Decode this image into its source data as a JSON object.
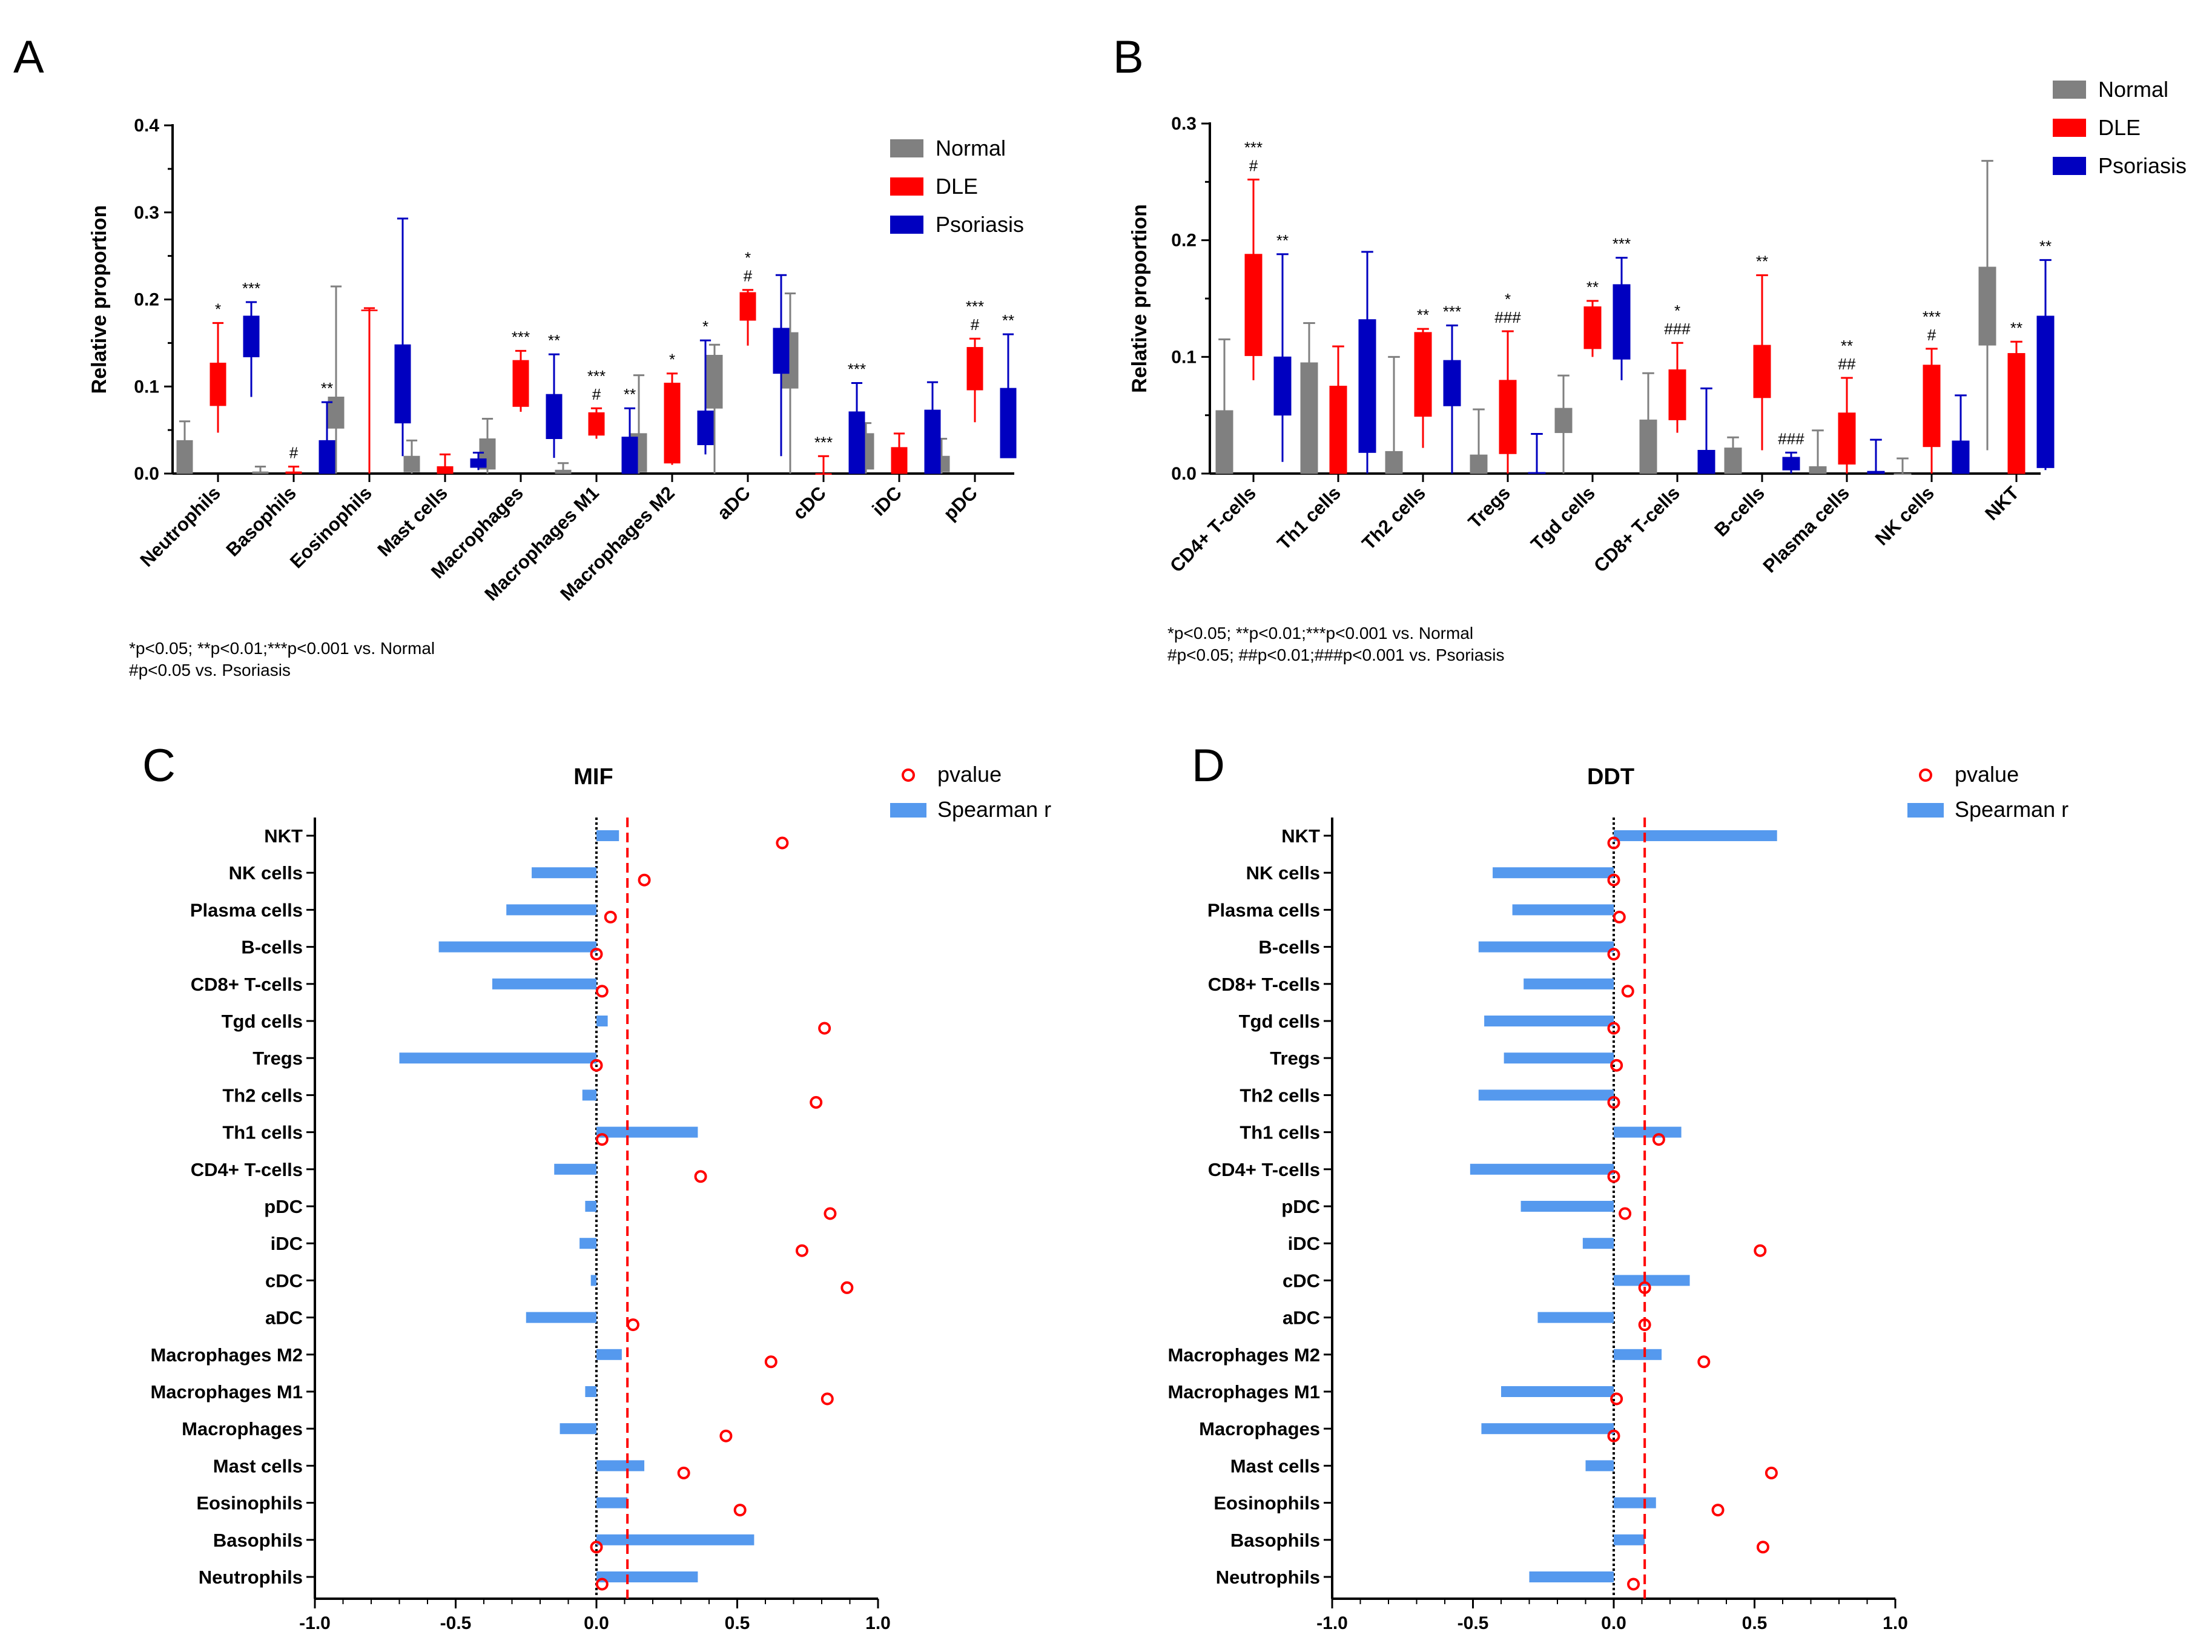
{
  "colors": {
    "normal": "#808080",
    "dle": "#ff0000",
    "psoriasis": "#0000c0",
    "spearman": "#5599ee",
    "pvalue": "#ff0000"
  },
  "panels": {
    "A": {
      "letter": "A",
      "note_lines": [
        "*p<0.05; **p<0.01;***p<0.001 vs. Normal",
        "#p<0.05 vs. Psoriasis"
      ]
    },
    "B": {
      "letter": "B",
      "note_lines": [
        "*p<0.05; **p<0.01;***p<0.001 vs. Normal",
        "#p<0.05; ##p<0.01;###p<0.001 vs. Psoriasis"
      ]
    },
    "C": {
      "letter": "C"
    },
    "D": {
      "letter": "D"
    }
  },
  "chart_data": [
    {
      "id": "A",
      "type": "box",
      "title": "",
      "ylabel": "Relative proportion",
      "ylim": [
        0,
        0.4
      ],
      "yticks": [
        "0.0",
        "0.1",
        "0.2",
        "0.3",
        "0.4"
      ],
      "ytick_values": [
        0,
        0.1,
        0.2,
        0.3,
        0.4
      ],
      "legend": [
        "Normal",
        "DLE",
        "Psoriasis"
      ],
      "legend_position": "top-right",
      "categories": [
        "Neutrophils",
        "Basophils",
        "Eosinophils",
        "Mast cells",
        "Macrophages",
        "Macrophages M1",
        "Macrophages M2",
        "aDC",
        "cDC",
        "iDC",
        "pDC"
      ],
      "series": [
        {
          "name": "Normal",
          "boxes": [
            [
              0,
              0,
              0.038,
              0.038,
              0.06
            ],
            [
              0,
              0,
              0.002,
              0.002,
              0.008
            ],
            [
              0,
              0.052,
              0.088,
              0.088,
              0.215
            ],
            [
              0,
              0.002,
              0.02,
              0.02,
              0.038
            ],
            [
              0,
              0.005,
              0.04,
              0.04,
              0.063
            ],
            [
              0,
              0,
              0.004,
              0.004,
              0.012
            ],
            [
              0,
              0.002,
              0.046,
              0.046,
              0.113
            ],
            [
              0,
              0.075,
              0.136,
              0.136,
              0.148
            ],
            [
              0,
              0.098,
              0.162,
              0.162,
              0.207
            ],
            [
              0,
              0.005,
              0.046,
              0.046,
              0.058
            ],
            [
              0,
              0.002,
              0.02,
              0.02,
              0.04
            ]
          ]
        },
        {
          "name": "DLE",
          "boxes": [
            [
              0.047,
              0.078,
              0.127,
              0.127,
              0.173
            ],
            [
              0,
              0,
              0.002,
              0.002,
              0.008
            ],
            [
              0,
              0.187,
              0.188,
              0.188,
              0.19
            ],
            [
              0,
              0,
              0.008,
              0.008,
              0.022
            ],
            [
              0.071,
              0.077,
              0.13,
              0.13,
              0.141
            ],
            [
              0.04,
              0.044,
              0.07,
              0.07,
              0.075
            ],
            [
              0.01,
              0.012,
              0.104,
              0.104,
              0.115
            ],
            [
              0.147,
              0.176,
              0.208,
              0.208,
              0.211
            ],
            [
              0,
              0,
              0,
              0,
              0.02
            ],
            [
              0,
              0,
              0.03,
              0.03,
              0.046
            ],
            [
              0.059,
              0.096,
              0.145,
              0.145,
              0.155
            ]
          ]
        },
        {
          "name": "Psoriasis",
          "boxes": [
            [
              0.088,
              0.134,
              0.181,
              0.181,
              0.197
            ],
            [
              0,
              0,
              0.038,
              0.038,
              0.082
            ],
            [
              0.02,
              0.058,
              0.148,
              0.148,
              0.293
            ],
            [
              0.004,
              0.007,
              0.017,
              0.017,
              0.024
            ],
            [
              0.018,
              0.04,
              0.091,
              0.091,
              0.137
            ],
            [
              0,
              0,
              0.042,
              0.042,
              0.075
            ],
            [
              0.022,
              0.033,
              0.072,
              0.072,
              0.153
            ],
            [
              0.02,
              0.115,
              0.167,
              0.167,
              0.228
            ],
            [
              0,
              0,
              0.071,
              0.071,
              0.104
            ],
            [
              0,
              0,
              0.073,
              0.073,
              0.105
            ],
            [
              0.018,
              0.018,
              0.098,
              0.098,
              0.16
            ]
          ]
        }
      ],
      "annotations": [
        {
          "cat": 0,
          "s": 1,
          "lines": [
            "*"
          ]
        },
        {
          "cat": 0,
          "s": 2,
          "lines": [
            "***"
          ]
        },
        {
          "cat": 1,
          "s": 1,
          "lines": [
            "#"
          ]
        },
        {
          "cat": 1,
          "s": 2,
          "lines": [
            "**"
          ]
        },
        {
          "cat": 4,
          "s": 1,
          "lines": [
            "***"
          ]
        },
        {
          "cat": 4,
          "s": 2,
          "lines": [
            "**"
          ]
        },
        {
          "cat": 5,
          "s": 1,
          "lines": [
            "***",
            "#"
          ]
        },
        {
          "cat": 5,
          "s": 2,
          "lines": [
            "**"
          ]
        },
        {
          "cat": 6,
          "s": 1,
          "lines": [
            "*"
          ]
        },
        {
          "cat": 6,
          "s": 2,
          "lines": [
            "*"
          ]
        },
        {
          "cat": 7,
          "s": 1,
          "lines": [
            "*",
            "#"
          ]
        },
        {
          "cat": 8,
          "s": 1,
          "lines": [
            "***"
          ]
        },
        {
          "cat": 8,
          "s": 2,
          "lines": [
            "***"
          ]
        },
        {
          "cat": 10,
          "s": 1,
          "lines": [
            "***",
            "#"
          ]
        },
        {
          "cat": 10,
          "s": 2,
          "lines": [
            "**"
          ]
        }
      ]
    },
    {
      "id": "B",
      "type": "box",
      "title": "",
      "ylabel": "Relative proportion",
      "ylim": [
        0,
        0.3
      ],
      "yticks": [
        "0.0",
        "0.1",
        "0.2",
        "0.3"
      ],
      "ytick_values": [
        0,
        0.1,
        0.2,
        0.3
      ],
      "legend": [
        "Normal",
        "DLE",
        "Psoriasis"
      ],
      "legend_position": "top-right",
      "categories": [
        "CD4+ T-cells",
        "Th1 cells",
        "Th2 cells",
        "Tregs",
        "Tgd cells",
        "CD8+ T-cells",
        "B-cells",
        "Plasma cells",
        "NK cells",
        "NKT"
      ],
      "series": [
        {
          "name": "Normal",
          "boxes": [
            [
              0,
              0,
              0.054,
              0.054,
              0.115
            ],
            [
              0,
              0,
              0.095,
              0.095,
              0.129
            ],
            [
              0,
              0,
              0.019,
              0.019,
              0.1
            ],
            [
              0,
              0,
              0.016,
              0.016,
              0.055
            ],
            [
              0,
              0.035,
              0.056,
              0.056,
              0.084
            ],
            [
              0,
              0,
              0.046,
              0.046,
              0.086
            ],
            [
              0,
              0,
              0.022,
              0.022,
              0.031
            ],
            [
              0,
              0,
              0.006,
              0.006,
              0.037
            ],
            [
              0,
              0,
              0,
              0,
              0.013
            ],
            [
              0.02,
              0.11,
              0.177,
              0.177,
              0.268
            ]
          ]
        },
        {
          "name": "DLE",
          "boxes": [
            [
              0.08,
              0.101,
              0.188,
              0.188,
              0.252
            ],
            [
              0,
              0,
              0.075,
              0.075,
              0.109
            ],
            [
              0.022,
              0.049,
              0.121,
              0.121,
              0.124
            ],
            [
              0,
              0.017,
              0.08,
              0.08,
              0.122
            ],
            [
              0.1,
              0.107,
              0.143,
              0.143,
              0.148
            ],
            [
              0.035,
              0.046,
              0.089,
              0.089,
              0.112
            ],
            [
              0.02,
              0.065,
              0.11,
              0.11,
              0.17
            ],
            [
              0,
              0.008,
              0.052,
              0.052,
              0.082
            ],
            [
              0,
              0.023,
              0.093,
              0.093,
              0.107
            ],
            [
              0,
              0,
              0.103,
              0.103,
              0.113
            ]
          ]
        },
        {
          "name": "Psoriasis",
          "boxes": [
            [
              0.01,
              0.05,
              0.1,
              0.1,
              0.188
            ],
            [
              0,
              0.018,
              0.132,
              0.132,
              0.19
            ],
            [
              0,
              0.058,
              0.097,
              0.097,
              0.127
            ],
            [
              0,
              0,
              0.001,
              0.001,
              0.034
            ],
            [
              0.08,
              0.098,
              0.162,
              0.162,
              0.185
            ],
            [
              0,
              0,
              0.02,
              0.02,
              0.073
            ],
            [
              0,
              0.003,
              0.014,
              0.014,
              0.018
            ],
            [
              0,
              0,
              0.002,
              0.002,
              0.029
            ],
            [
              0,
              0,
              0.028,
              0.028,
              0.067
            ],
            [
              0.003,
              0.005,
              0.135,
              0.135,
              0.183
            ]
          ]
        }
      ],
      "annotations": [
        {
          "cat": 0,
          "s": 1,
          "lines": [
            "***",
            "#"
          ]
        },
        {
          "cat": 0,
          "s": 2,
          "lines": [
            "**"
          ]
        },
        {
          "cat": 2,
          "s": 1,
          "lines": [
            "**"
          ]
        },
        {
          "cat": 2,
          "s": 2,
          "lines": [
            "***"
          ]
        },
        {
          "cat": 3,
          "s": 1,
          "lines": [
            "*",
            "###"
          ]
        },
        {
          "cat": 4,
          "s": 1,
          "lines": [
            "**"
          ]
        },
        {
          "cat": 4,
          "s": 2,
          "lines": [
            "***"
          ]
        },
        {
          "cat": 5,
          "s": 1,
          "lines": [
            "*",
            "###"
          ]
        },
        {
          "cat": 6,
          "s": 1,
          "lines": [
            "**"
          ]
        },
        {
          "cat": 6,
          "s": 2,
          "lines": [
            "###"
          ]
        },
        {
          "cat": 7,
          "s": 1,
          "lines": [
            "**",
            "##"
          ]
        },
        {
          "cat": 8,
          "s": 1,
          "lines": [
            "***",
            "#"
          ]
        },
        {
          "cat": 9,
          "s": 1,
          "lines": [
            "**"
          ]
        },
        {
          "cat": 9,
          "s": 2,
          "lines": [
            "**"
          ]
        }
      ]
    },
    {
      "id": "C",
      "type": "bar",
      "orientation": "horizontal",
      "title": "MIF",
      "xlim": [
        -1.0,
        1.0
      ],
      "xticks": [
        "-1.0",
        "-0.5",
        "0.0",
        "0.5",
        "1.0"
      ],
      "xtick_values": [
        -1,
        -0.5,
        0,
        0.5,
        1
      ],
      "legend": [
        "pvalue",
        "Spearman r"
      ],
      "legend_position": "top-right",
      "threshold": 0.11,
      "categories": [
        "NKT",
        "NK cells",
        "Plasma cells",
        "B-cells",
        "CD8+ T-cells",
        "Tgd cells",
        "Tregs",
        "Th2 cells",
        "Th1 cells",
        "CD4+ T-cells",
        "pDC",
        "iDC",
        "cDC",
        "aDC",
        "Macrophages M2",
        "Macrophages M1",
        "Macrophages",
        "Mast cells",
        "Eosinophils",
        "Basophils",
        "Neutrophils"
      ],
      "spearman_r": [
        0.08,
        -0.23,
        -0.32,
        -0.56,
        -0.37,
        0.04,
        -0.7,
        -0.05,
        0.36,
        -0.15,
        -0.04,
        -0.06,
        -0.02,
        -0.25,
        0.09,
        -0.04,
        -0.13,
        0.17,
        0.11,
        0.56,
        0.36
      ],
      "pvalue": [
        0.66,
        0.17,
        0.05,
        0.0,
        0.02,
        0.81,
        0.0,
        0.78,
        0.02,
        0.37,
        0.83,
        0.73,
        0.89,
        0.13,
        0.62,
        0.82,
        0.46,
        0.31,
        0.51,
        0.0,
        0.02
      ]
    },
    {
      "id": "D",
      "type": "bar",
      "orientation": "horizontal",
      "title": "DDT",
      "xlim": [
        -1.0,
        1.0
      ],
      "xticks": [
        "-1.0",
        "-0.5",
        "0.0",
        "0.5",
        "1.0"
      ],
      "xtick_values": [
        -1,
        -0.5,
        0,
        0.5,
        1
      ],
      "legend": [
        "pvalue",
        "Spearman r"
      ],
      "legend_position": "top-right",
      "threshold": 0.11,
      "categories": [
        "NKT",
        "NK cells",
        "Plasma cells",
        "B-cells",
        "CD8+ T-cells",
        "Tgd cells",
        "Tregs",
        "Th2 cells",
        "Th1 cells",
        "CD4+ T-cells",
        "pDC",
        "iDC",
        "cDC",
        "aDC",
        "Macrophages M2",
        "Macrophages M1",
        "Macrophages",
        "Mast cells",
        "Eosinophils",
        "Basophils",
        "Neutrophils"
      ],
      "spearman_r": [
        0.58,
        -0.43,
        -0.36,
        -0.48,
        -0.32,
        -0.46,
        -0.39,
        -0.48,
        0.24,
        -0.51,
        -0.33,
        -0.11,
        0.27,
        -0.27,
        0.17,
        -0.4,
        -0.47,
        -0.1,
        0.15,
        0.11,
        -0.3
      ],
      "pvalue": [
        0.0,
        0.0,
        0.02,
        0.0,
        0.05,
        0.0,
        0.01,
        0.0,
        0.16,
        0.0,
        0.04,
        0.52,
        0.11,
        0.11,
        0.32,
        0.01,
        0.0,
        0.56,
        0.37,
        0.53,
        0.07
      ]
    }
  ]
}
